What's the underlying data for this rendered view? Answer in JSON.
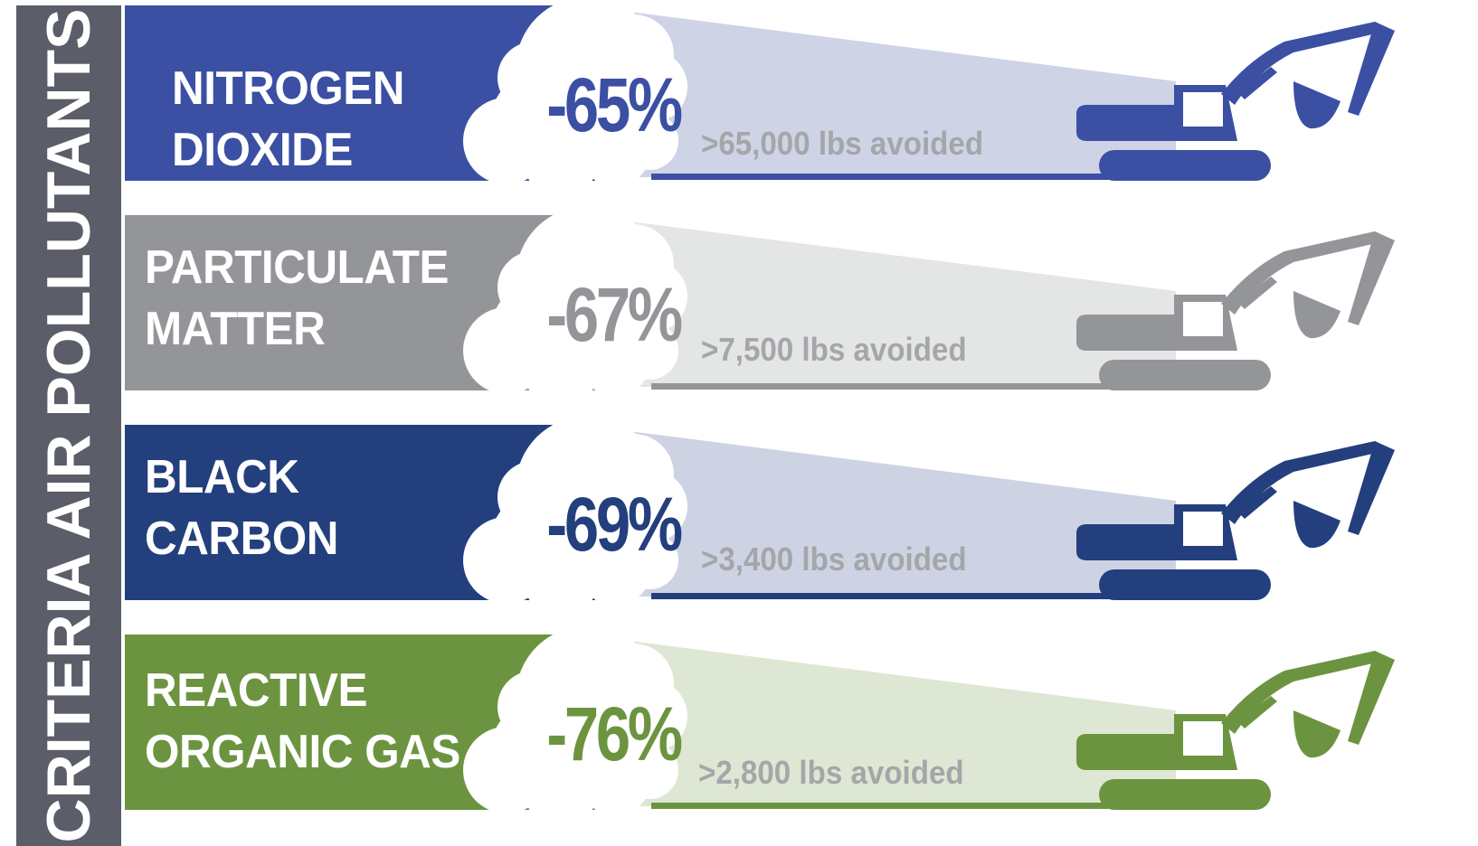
{
  "side_title": "CRITERIA AIR POLLUTANTS",
  "rows": [
    {
      "label_line1": "NITROGEN",
      "label_line2": "DIOXIDE",
      "percent": "-65%",
      "avoided": ">65,000 lbs avoided",
      "color": "#3b4fa3",
      "light_color": "#cfd3e6",
      "percent_color": "#3b4fa3"
    },
    {
      "label_line1": "PARTICULATE",
      "label_line2": "MATTER",
      "percent": "-67%",
      "avoided": ">7,500 lbs avoided",
      "color": "#939598",
      "light_color": "#e4e5e5",
      "percent_color": "#939598"
    },
    {
      "label_line1": "BLACK",
      "label_line2": "CARBON",
      "percent": "-69%",
      "avoided": ">3,400 lbs avoided",
      "color": "#233f7d",
      "light_color": "#ced3e4",
      "percent_color": "#233f7d"
    },
    {
      "label_line1": "REACTIVE",
      "label_line2": "ORGANIC GAS",
      "percent": "-76%",
      "avoided": ">2,800 lbs avoided",
      "color": "#6c9440",
      "light_color": "#dee7d3",
      "percent_color": "#6c9440"
    }
  ],
  "icons": {
    "vehicle": "excavator-icon",
    "cloud": "cloud-icon"
  }
}
